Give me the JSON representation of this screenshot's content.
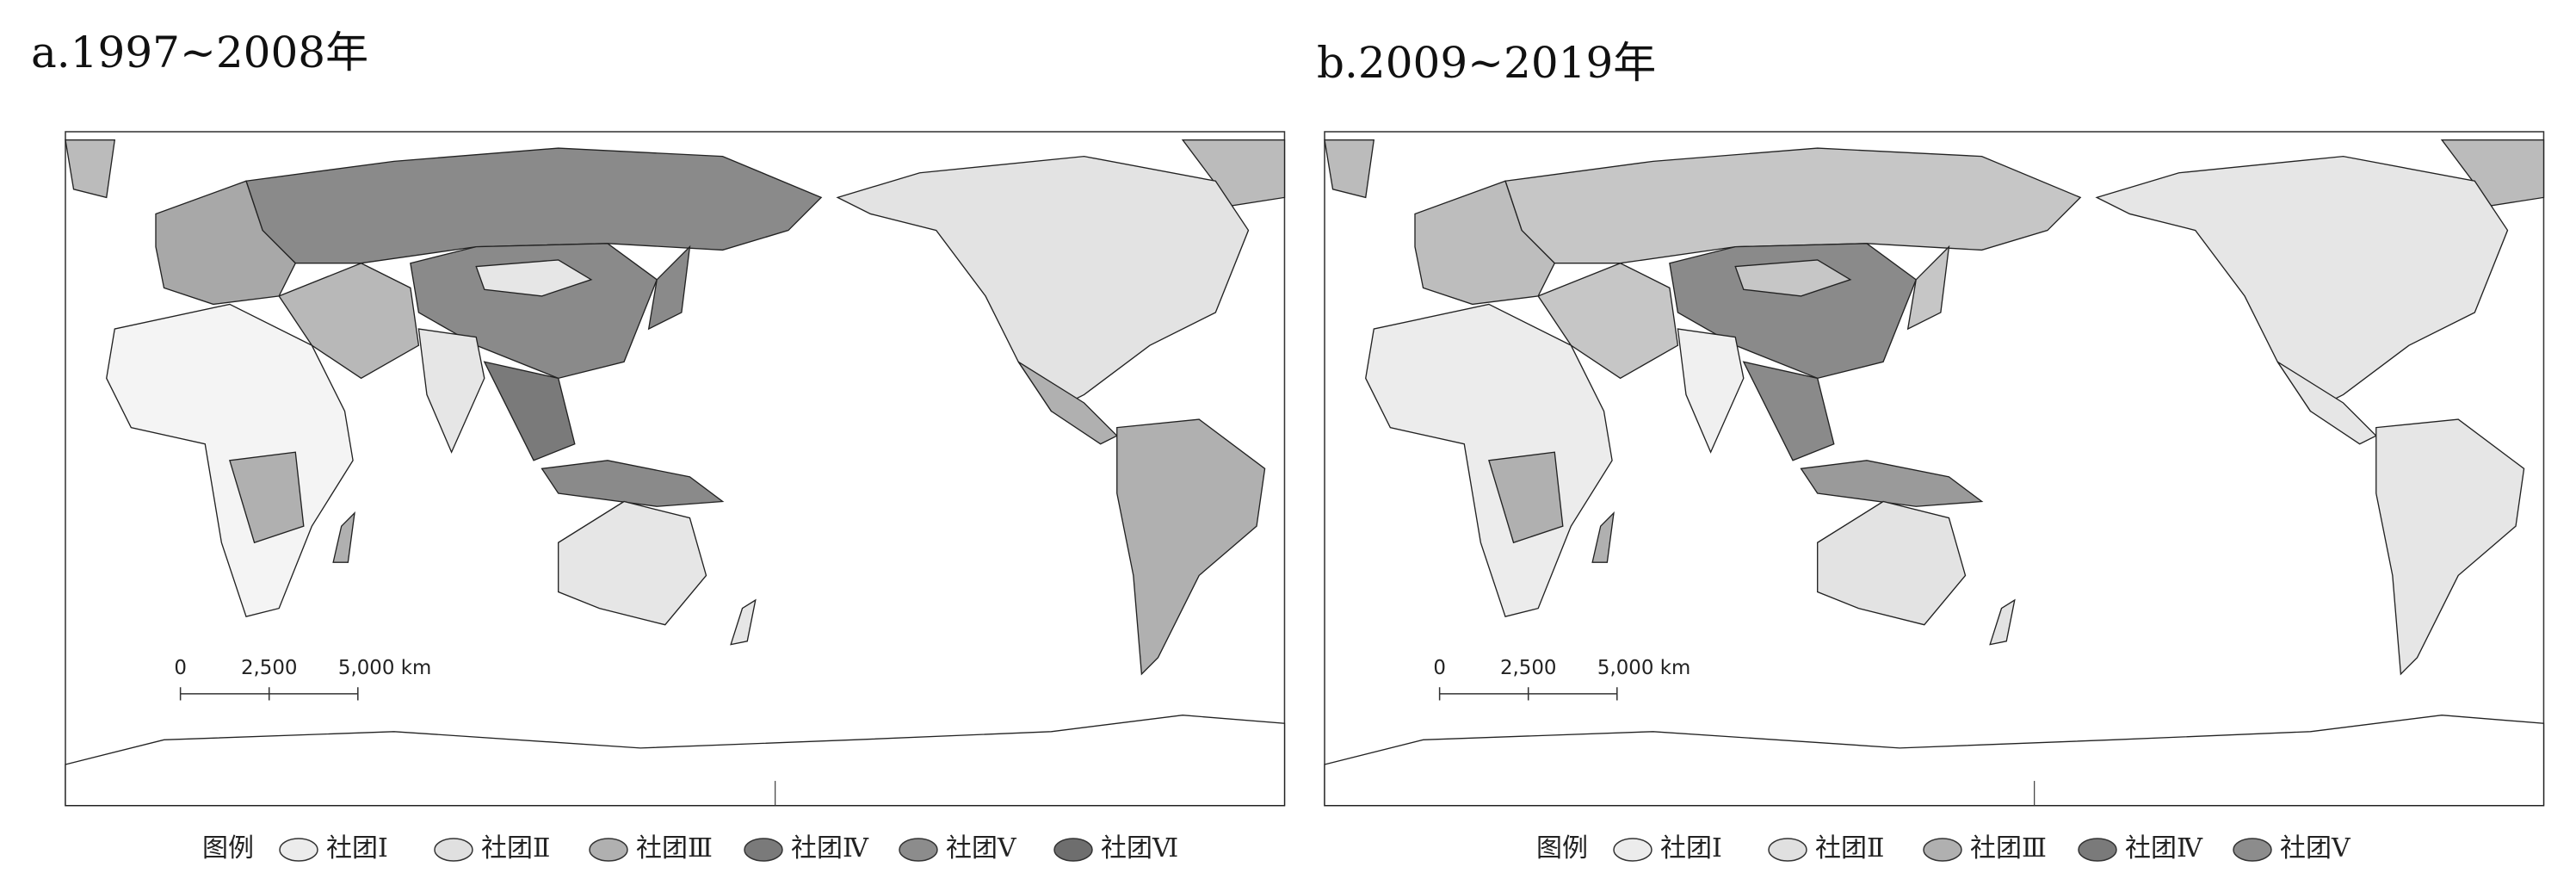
{
  "panels": [
    {
      "title": "a.1997~2008年",
      "scale": {
        "labels": [
          "0",
          "2,500",
          "5,000 km"
        ]
      },
      "legend": {
        "title": "图例",
        "items": [
          {
            "label": "社团Ⅰ",
            "color": "#ececec"
          },
          {
            "label": "社团Ⅱ",
            "color": "#e0e0e0"
          },
          {
            "label": "社团Ⅲ",
            "color": "#b0b0b0"
          },
          {
            "label": "社团Ⅳ",
            "color": "#7a7a7a"
          },
          {
            "label": "社团Ⅴ",
            "color": "#8c8c8c"
          },
          {
            "label": "社团Ⅵ",
            "color": "#6e6e6e"
          }
        ]
      }
    },
    {
      "title": "b.2009~2019年",
      "scale": {
        "labels": [
          "0",
          "2,500",
          "5,000 km"
        ]
      },
      "legend": {
        "title": "图例",
        "items": [
          {
            "label": "社团Ⅰ",
            "color": "#ececec"
          },
          {
            "label": "社团Ⅱ",
            "color": "#e0e0e0"
          },
          {
            "label": "社团Ⅲ",
            "color": "#b0b0b0"
          },
          {
            "label": "社团Ⅳ",
            "color": "#7a7a7a"
          },
          {
            "label": "社团Ⅴ",
            "color": "#8c8c8c"
          }
        ]
      }
    }
  ]
}
